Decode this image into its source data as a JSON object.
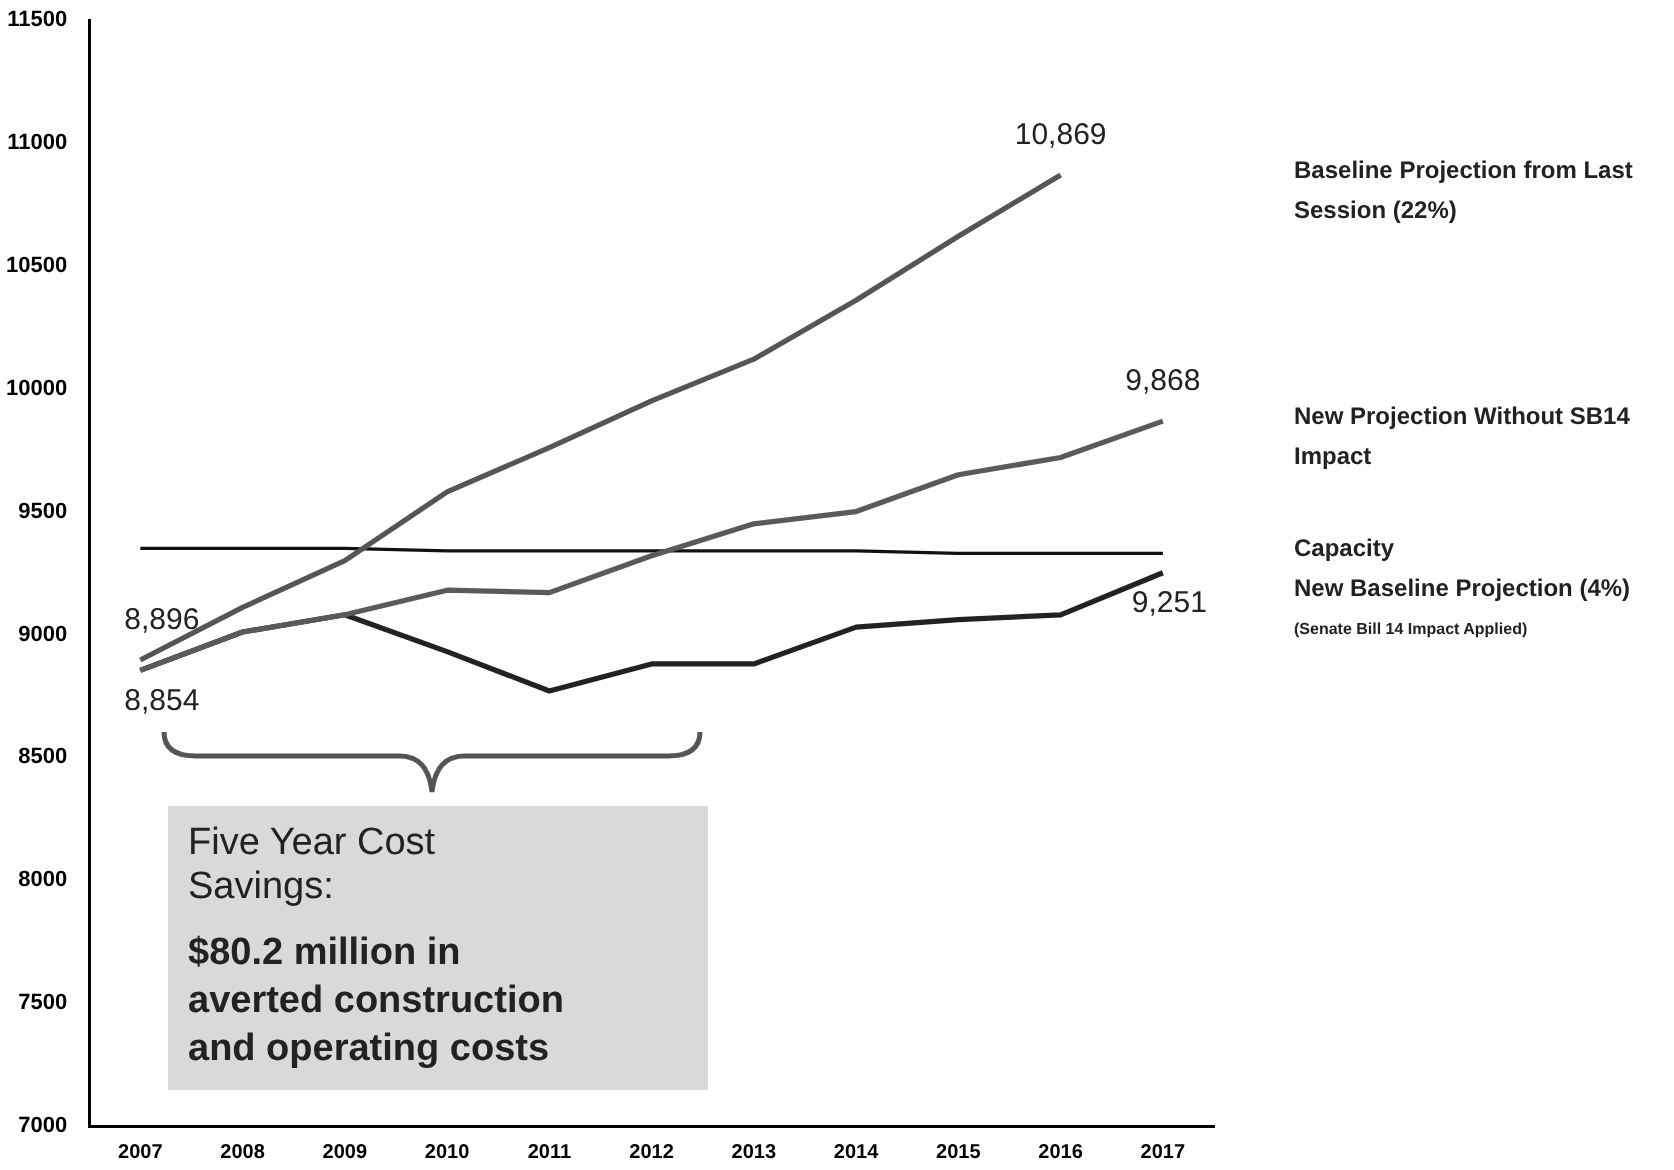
{
  "chart_data": {
    "type": "line",
    "categories": [
      "2007",
      "2008",
      "2009",
      "2010",
      "2011",
      "2012",
      "2013",
      "2014",
      "2015",
      "2016",
      "2017"
    ],
    "series": [
      {
        "name": "Baseline Projection from Last Session (22%)",
        "color": "#555555",
        "values": [
          8896,
          9110,
          9300,
          9580,
          9760,
          9950,
          10120,
          10360,
          10620,
          10869,
          null
        ],
        "value_labels": [
          "8,896",
          null,
          null,
          null,
          null,
          null,
          null,
          null,
          null,
          "10,869",
          null
        ]
      },
      {
        "name": "New Projection Without SB14 Impact",
        "color": "#5a5a5a",
        "values": [
          8854,
          9010,
          9080,
          9180,
          9170,
          9320,
          9450,
          9500,
          9650,
          9720,
          9868
        ],
        "value_labels": [
          null,
          null,
          null,
          null,
          null,
          null,
          null,
          null,
          null,
          null,
          "9,868"
        ]
      },
      {
        "name": "Capacity",
        "color": "#111111",
        "values": [
          9350,
          9350,
          9350,
          9340,
          9340,
          9340,
          9340,
          9340,
          9330,
          9330,
          9330
        ]
      },
      {
        "name": "New Baseline Projection (4%)",
        "color": "#222222",
        "values": [
          8854,
          9010,
          9080,
          8930,
          8770,
          8880,
          8880,
          9030,
          9060,
          9080,
          9251
        ],
        "value_labels": [
          "8,854",
          null,
          null,
          null,
          null,
          null,
          null,
          null,
          null,
          null,
          "9,251"
        ]
      }
    ],
    "ylim": [
      7000,
      11500
    ],
    "yticks": [
      7000,
      7500,
      8000,
      8500,
      9000,
      9500,
      10000,
      10500,
      11000,
      11500
    ],
    "grid": false,
    "legend": false,
    "marker": "none",
    "line_style": "solid",
    "annotations": [
      "(Senate Bill 14 Impact Applied)",
      "Five Year Cost Savings:",
      "$80.2 million in averted construction and operating costs"
    ]
  }
}
